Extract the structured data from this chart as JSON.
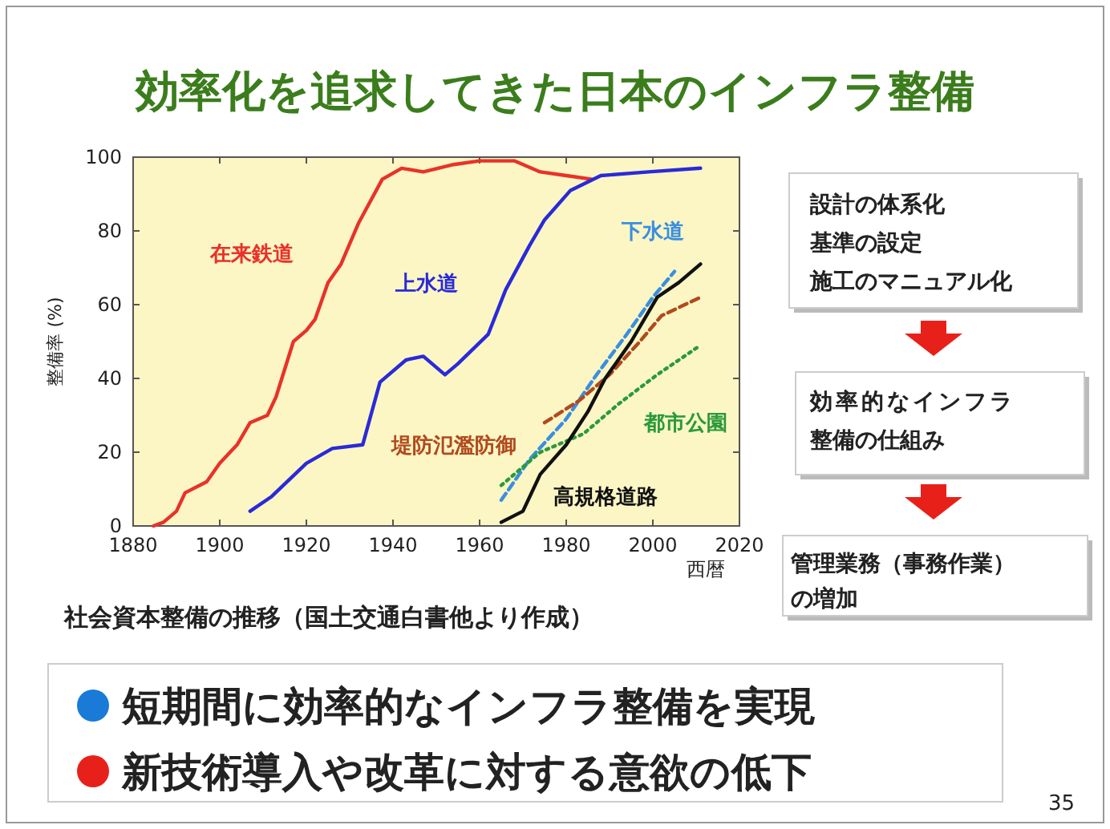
{
  "chart_data": {
    "type": "line",
    "title": "効率化を追求してきた日本のインフラ整備",
    "xlabel": "西暦",
    "ylabel": "整備率 (%)",
    "xlim": [
      1880,
      2020
    ],
    "xticks": [
      1880,
      1900,
      1920,
      1940,
      1960,
      1980,
      2000,
      2020
    ],
    "ylim": [
      0,
      100
    ],
    "yticks": [
      0,
      20,
      40,
      60,
      80,
      100
    ],
    "grid": false,
    "marker": "none",
    "series": [
      {
        "name": "在来鉄道",
        "color": "#e8322a",
        "line_style": "solid",
        "x": [
          1884.7,
          1887,
          1890,
          1892,
          1897,
          1900,
          1904,
          1907,
          1911,
          1913,
          1917,
          1920,
          1922,
          1925,
          1928,
          1932,
          1937.5,
          1942,
          1947,
          1954,
          1960,
          1968,
          1974,
          1980,
          1986
        ],
        "values": [
          0,
          1,
          4,
          9,
          12,
          17,
          22,
          28,
          30,
          35,
          50,
          53,
          56,
          66,
          71,
          82,
          94,
          97,
          96,
          98,
          99,
          99,
          96,
          95,
          94
        ]
      },
      {
        "name": "上水道",
        "color": "#2a2ad8",
        "line_style": "solid",
        "x": [
          1907,
          1912,
          1920,
          1926,
          1933,
          1937,
          1943,
          1947,
          1952,
          1955,
          1962,
          1966,
          1971.5,
          1975,
          1981,
          1988,
          1999,
          2011
        ],
        "values": [
          4,
          8,
          17,
          21,
          22,
          39,
          45,
          46,
          41,
          44,
          52,
          64,
          76,
          83,
          91,
          95,
          96,
          97
        ]
      },
      {
        "name": "下水道",
        "color": "#3a8ee0",
        "line_style": "dashed",
        "x": [
          1965,
          1971.5,
          1980,
          1987,
          1994,
          2000,
          2005
        ],
        "values": [
          7,
          18,
          29,
          41,
          52,
          62,
          69
        ]
      },
      {
        "name": "堤防氾濫防御",
        "color": "#b04a1e",
        "line_style": "dashed",
        "x": [
          1975,
          1983,
          1990,
          1997,
          2002,
          2011
        ],
        "values": [
          28,
          34,
          41,
          50,
          57,
          62
        ]
      },
      {
        "name": "都市公園",
        "color": "#2a9a3a",
        "line_style": "dotted",
        "x": [
          1965,
          1974,
          1984,
          1992,
          2001,
          2011
        ],
        "values": [
          11,
          20,
          25,
          33,
          41,
          49
        ]
      },
      {
        "name": "高規格道路",
        "color": "#111111",
        "line_style": "solid",
        "x": [
          1965,
          1970,
          1974,
          1980,
          1985,
          1989,
          1995,
          2001,
          2006,
          2011
        ],
        "values": [
          1,
          4,
          14,
          22,
          31,
          40,
          50,
          62,
          66,
          71
        ]
      }
    ],
    "annotations": [
      "社会資本整備の推移（国土交通白書他より作成）",
      "設計の体系化",
      "基準の設定",
      "施工のマニュアル化",
      "効率的なインフラ",
      "整備の仕組み",
      "管理業務（事務作業）",
      "の増加",
      "短期間に効率的なインフラ整備を実現",
      "新技術導入や改革に対する意欲の低下",
      "35"
    ]
  }
}
